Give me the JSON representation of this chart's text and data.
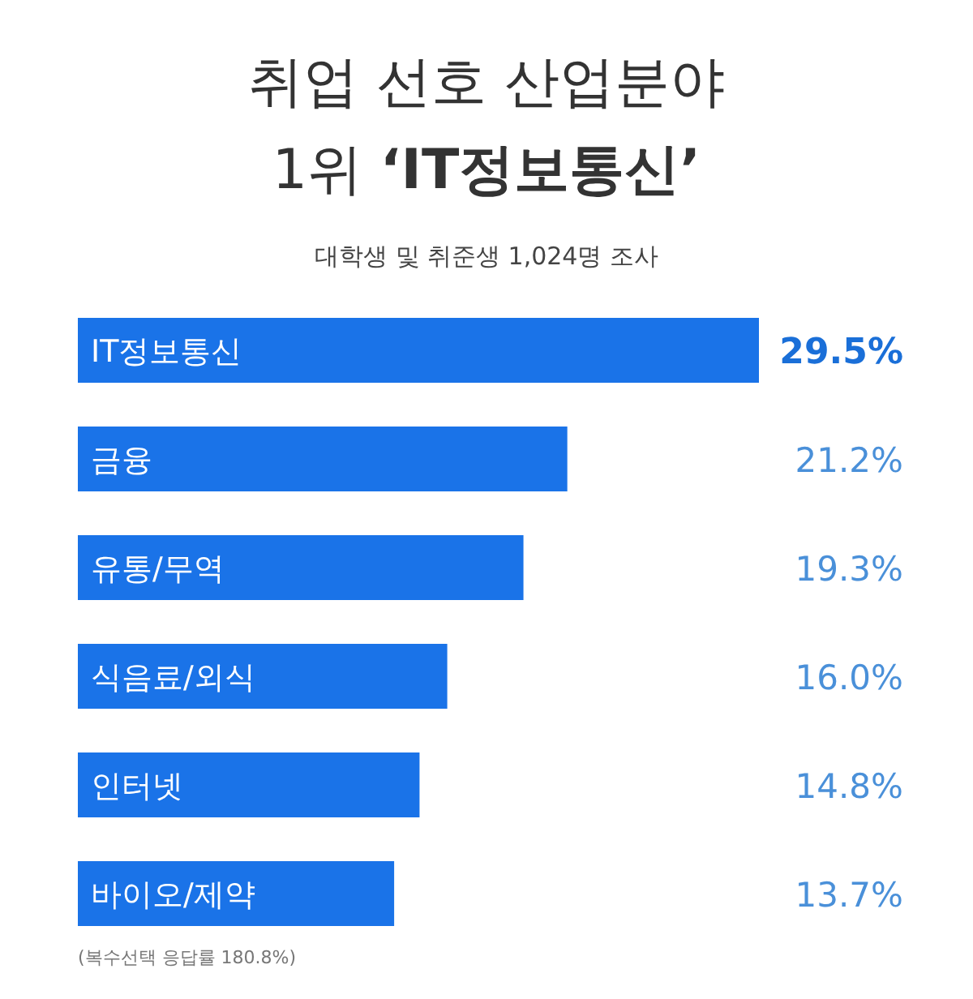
{
  "chart_data": {
    "type": "bar",
    "orientation": "horizontal",
    "title": "취업 선호 산업분야",
    "subtitle": "1위 **‘IT정보통신’**",
    "categories": [
      "IT정보통신",
      "금융",
      "유통/무역",
      "식음료/외식",
      "인터넷",
      "바이오/제약"
    ],
    "values": [
      29.5,
      21.2,
      19.3,
      16.0,
      14.8,
      13.7
    ],
    "value_labels": [
      "29.5%",
      "21.2%",
      "19.3%",
      "16.0%",
      "14.8%",
      "13.7%"
    ],
    "color": "#1a73e8",
    "annotations": [
      "대학생 및 취준생 1,024명 조사",
      "(복수선택 응답률 180.8%)"
    ]
  }
}
